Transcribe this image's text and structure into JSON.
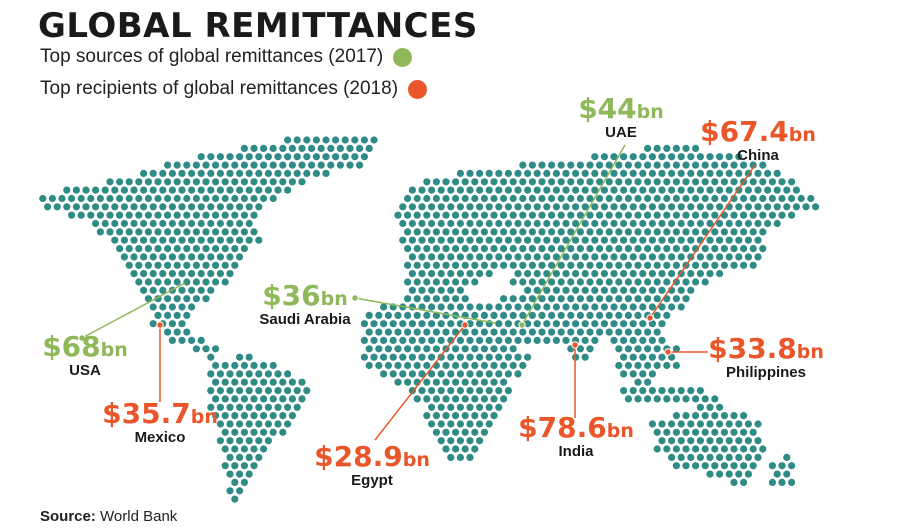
{
  "title": "GLOBAL REMITTANCES",
  "legend": {
    "sources_label": "Top sources of global remittances (2017)",
    "recipients_label": "Top recipients of global remittances (2018)",
    "sources_color": "#8fb85a",
    "recipients_color": "#e8562a"
  },
  "map_color": "#2e8b86",
  "callouts": {
    "usa": {
      "amount": "$68",
      "unit": "bn",
      "country": "USA",
      "kind": "source"
    },
    "saudi": {
      "amount": "$36",
      "unit": "bn",
      "country": "Saudi Arabia",
      "kind": "source"
    },
    "uae": {
      "amount": "$44",
      "unit": "bn",
      "country": "UAE",
      "kind": "source"
    },
    "mexico": {
      "amount": "$35.7",
      "unit": "bn",
      "country": "Mexico",
      "kind": "recipient"
    },
    "egypt": {
      "amount": "$28.9",
      "unit": "bn",
      "country": "Egypt",
      "kind": "recipient"
    },
    "india": {
      "amount": "$78.6",
      "unit": "bn",
      "country": "India",
      "kind": "recipient"
    },
    "china": {
      "amount": "$67.4",
      "unit": "bn",
      "country": "China",
      "kind": "recipient"
    },
    "philippines": {
      "amount": "$33.8",
      "unit": "bn",
      "country": "Philippines",
      "kind": "recipient"
    }
  },
  "source": {
    "label": "Source:",
    "text": "World Bank"
  }
}
